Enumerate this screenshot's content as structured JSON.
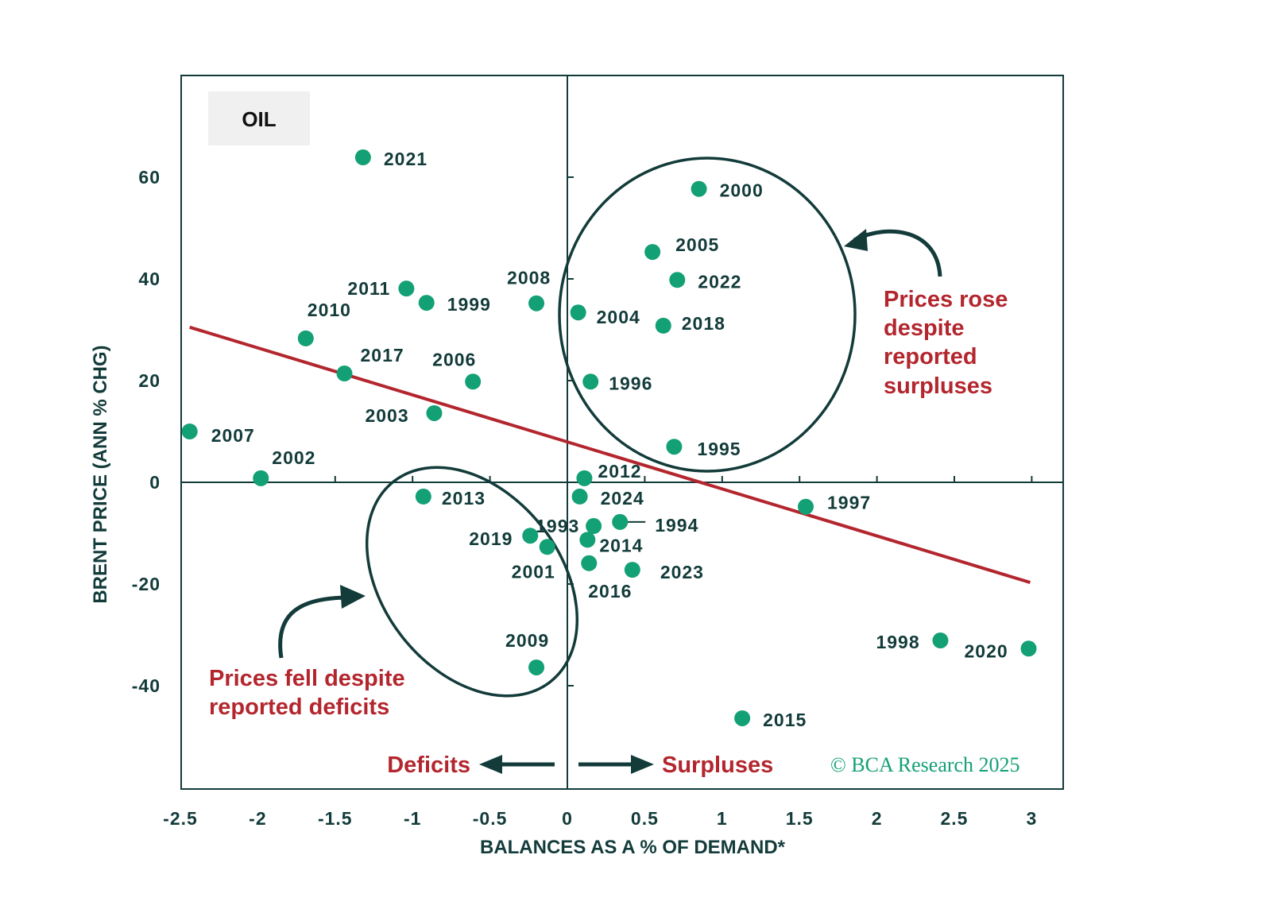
{
  "chart_data": {
    "type": "scatter",
    "title": "OIL",
    "xlabel": "BALANCES AS A % OF DEMAND*",
    "ylabel": "BRENT PRICE (ANN % CHG)",
    "xlim": [
      -2.5,
      3.2
    ],
    "ylim": [
      -60,
      80
    ],
    "xticks": [
      -2.5,
      -2,
      -1.5,
      -1,
      -0.5,
      0,
      0.5,
      1,
      1.5,
      2,
      2.5,
      3
    ],
    "xtick_labels": [
      "-2.5",
      "-2",
      "-1.5",
      "-1",
      "-0.5",
      "0",
      "0.5",
      "1",
      "1.5",
      "2",
      "2.5",
      "3"
    ],
    "yticks": [
      -40,
      -20,
      0,
      20,
      40,
      60
    ],
    "ytick_labels": [
      "-40",
      "-20",
      "0",
      "20",
      "40",
      "60"
    ],
    "grid": false,
    "point_color": "#13a074",
    "trend_color": "#b3262e",
    "axis_color": "#123b3a",
    "points": [
      {
        "label": "2021",
        "x": -1.32,
        "y": 63.9
      },
      {
        "label": "2000",
        "x": 0.85,
        "y": 57.7
      },
      {
        "label": "2005",
        "x": 0.55,
        "y": 45.3
      },
      {
        "label": "2022",
        "x": 0.71,
        "y": 39.8
      },
      {
        "label": "2011",
        "x": -1.04,
        "y": 38.1
      },
      {
        "label": "1999",
        "x": -0.91,
        "y": 35.3
      },
      {
        "label": "2008",
        "x": -0.2,
        "y": 35.2
      },
      {
        "label": "2004",
        "x": 0.07,
        "y": 33.4
      },
      {
        "label": "2018",
        "x": 0.62,
        "y": 30.8
      },
      {
        "label": "2010",
        "x": -1.69,
        "y": 28.3
      },
      {
        "label": "2017",
        "x": -1.44,
        "y": 21.4
      },
      {
        "label": "2006",
        "x": -0.61,
        "y": 19.8
      },
      {
        "label": "1996",
        "x": 0.15,
        "y": 19.8
      },
      {
        "label": "2003",
        "x": -0.86,
        "y": 13.6
      },
      {
        "label": "2007",
        "x": -2.44,
        "y": 10.0
      },
      {
        "label": "1995",
        "x": 0.69,
        "y": 7.0
      },
      {
        "label": "2002",
        "x": -1.98,
        "y": 0.8
      },
      {
        "label": "2012",
        "x": 0.11,
        "y": 0.8
      },
      {
        "label": "2013",
        "x": -0.93,
        "y": -2.8
      },
      {
        "label": "2024",
        "x": 0.08,
        "y": -2.8
      },
      {
        "label": "1997",
        "x": 1.54,
        "y": -4.8
      },
      {
        "label": "1994",
        "x": 0.34,
        "y": -7.8
      },
      {
        "label": "1993",
        "x": 0.17,
        "y": -8.6
      },
      {
        "label": "2019",
        "x": -0.24,
        "y": -10.5
      },
      {
        "label": "2014",
        "x": 0.13,
        "y": -11.3
      },
      {
        "label": "2001",
        "x": -0.13,
        "y": -12.7
      },
      {
        "label": "2016",
        "x": 0.14,
        "y": -15.9
      },
      {
        "label": "2023",
        "x": 0.42,
        "y": -17.2
      },
      {
        "label": "1998",
        "x": 2.41,
        "y": -31.1
      },
      {
        "label": "2020",
        "x": 2.98,
        "y": -32.7
      },
      {
        "label": "2009",
        "x": -0.2,
        "y": -36.4
      },
      {
        "label": "2015",
        "x": 1.13,
        "y": -46.4
      }
    ],
    "trend_line": {
      "x": [
        -2.44,
        2.99
      ],
      "y": [
        30.5,
        -19.7
      ]
    },
    "annotations": {
      "rose": [
        "Prices rose",
        "despite",
        "reported",
        "surpluses"
      ],
      "fell": [
        "Prices fell despite",
        "reported deficits"
      ],
      "deficits": "Deficits",
      "surpluses": "Surpluses"
    },
    "watermark": "© BCA Research 2025"
  }
}
